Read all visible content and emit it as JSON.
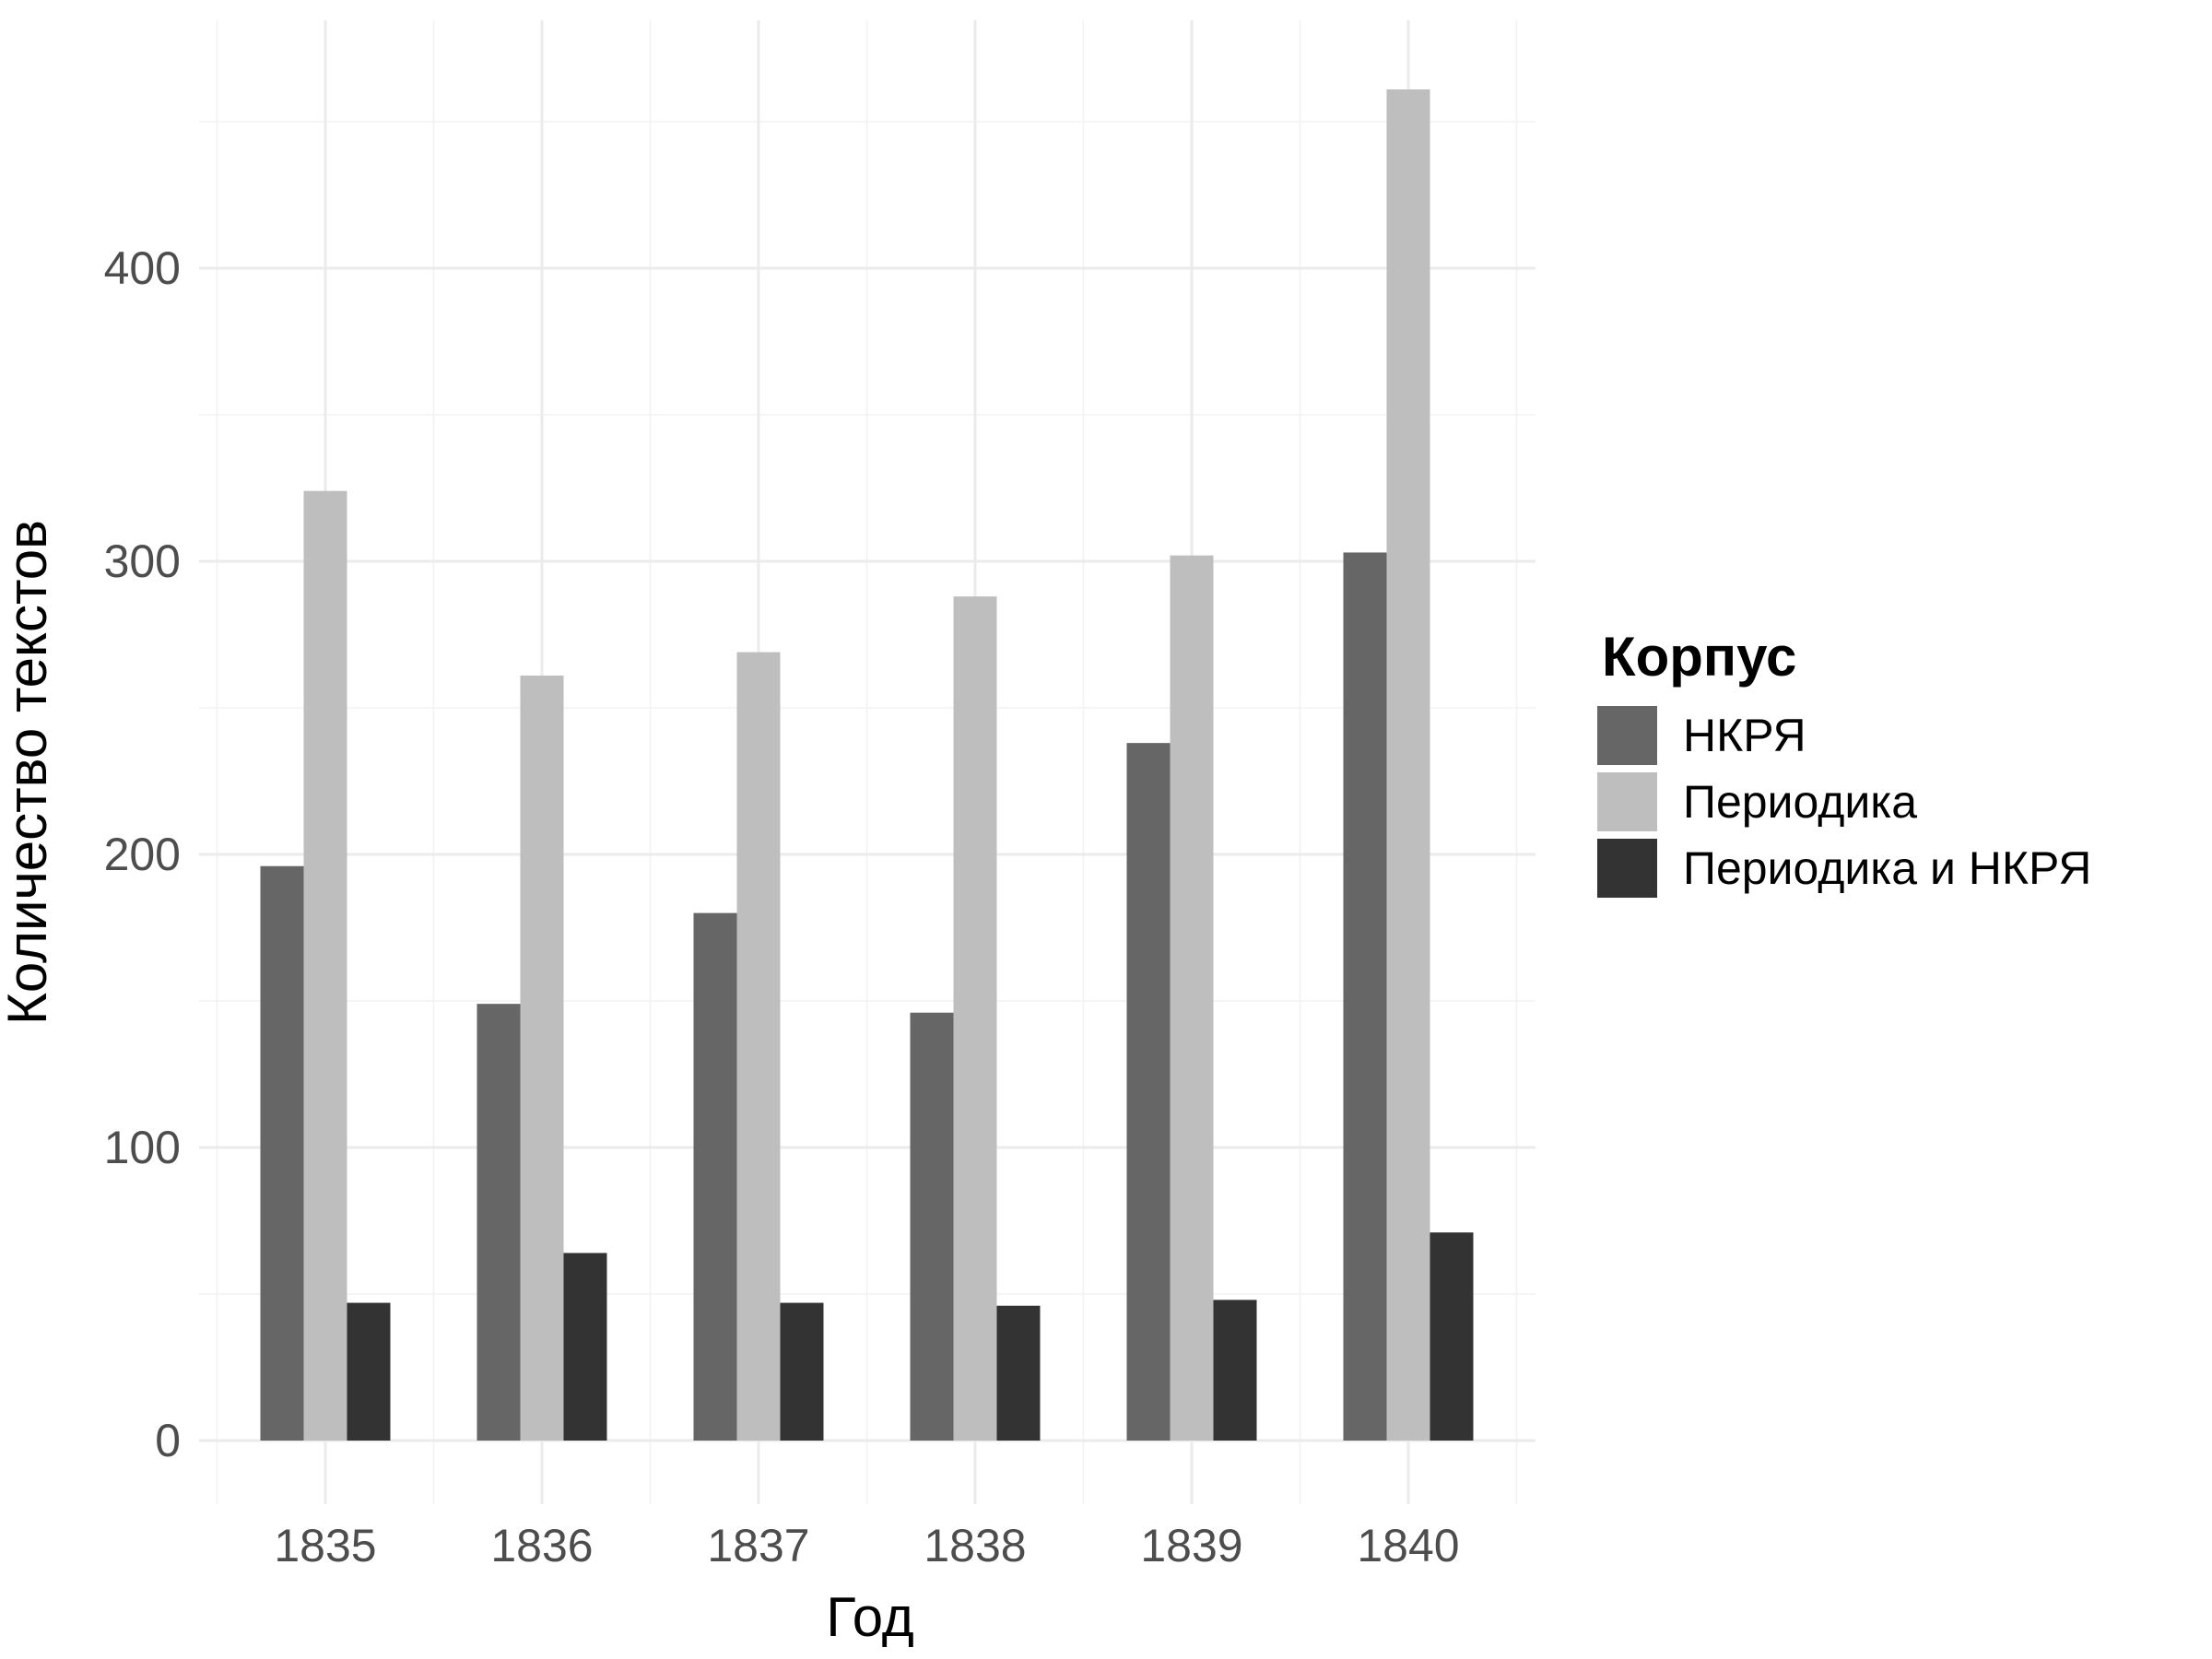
{
  "chart_data": {
    "type": "bar",
    "title": "",
    "xlabel": "Год",
    "ylabel": "Количество текстов",
    "categories": [
      "1835",
      "1836",
      "1837",
      "1838",
      "1839",
      "1840"
    ],
    "series": [
      {
        "name": "НКРЯ",
        "color": "#666666",
        "values": [
          196,
          149,
          180,
          146,
          238,
          303
        ]
      },
      {
        "name": "Периодика",
        "color": "#bebebe",
        "values": [
          324,
          261,
          269,
          288,
          302,
          461
        ]
      },
      {
        "name": "Периодика и НКРЯ",
        "color": "#333333",
        "values": [
          47,
          64,
          47,
          46,
          48,
          71
        ]
      }
    ],
    "ylim": [
      -22,
      485
    ],
    "yticks": [
      0,
      100,
      200,
      300,
      400
    ],
    "grid": true,
    "legend": {
      "title": "Корпус",
      "position": "right"
    }
  }
}
